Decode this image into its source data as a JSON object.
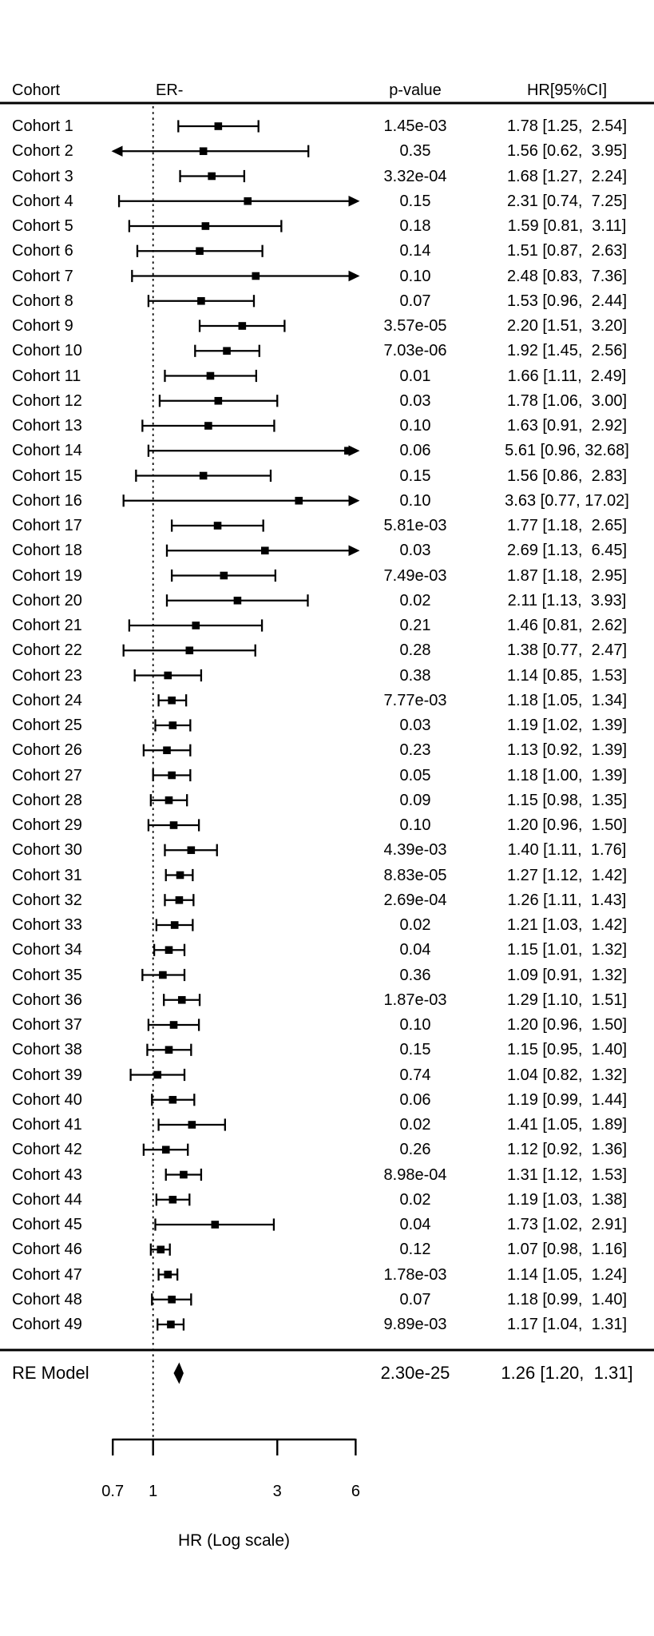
{
  "chart_data": {
    "type": "forest",
    "group_label": "ER-",
    "xlabel": "HR (Log scale)",
    "xscale": "log",
    "columns": {
      "cohort": "Cohort",
      "group": "ER-",
      "pvalue": "p-value",
      "hrci": "HR[95%CI]"
    },
    "xticks": [
      "0.7",
      "1",
      "3",
      "6"
    ],
    "xtick_values": [
      0.7,
      1,
      3,
      6
    ],
    "reference_line": 1,
    "clip_range": [
      0.7,
      6.1
    ],
    "rows": [
      {
        "label": "Cohort 1",
        "p": "1.45e-03",
        "hr": 1.78,
        "lo": 1.25,
        "hi": 2.54,
        "ci_text": "1.78 [1.25,  2.54]"
      },
      {
        "label": "Cohort 2",
        "p": "0.35",
        "hr": 1.56,
        "lo": 0.62,
        "hi": 3.95,
        "ci_text": "1.56 [0.62,  3.95]"
      },
      {
        "label": "Cohort 3",
        "p": "3.32e-04",
        "hr": 1.68,
        "lo": 1.27,
        "hi": 2.24,
        "ci_text": "1.68 [1.27,  2.24]"
      },
      {
        "label": "Cohort 4",
        "p": "0.15",
        "hr": 2.31,
        "lo": 0.74,
        "hi": 7.25,
        "ci_text": "2.31 [0.74,  7.25]"
      },
      {
        "label": "Cohort 5",
        "p": "0.18",
        "hr": 1.59,
        "lo": 0.81,
        "hi": 3.11,
        "ci_text": "1.59 [0.81,  3.11]"
      },
      {
        "label": "Cohort 6",
        "p": "0.14",
        "hr": 1.51,
        "lo": 0.87,
        "hi": 2.63,
        "ci_text": "1.51 [0.87,  2.63]"
      },
      {
        "label": "Cohort 7",
        "p": "0.10",
        "hr": 2.48,
        "lo": 0.83,
        "hi": 7.36,
        "ci_text": "2.48 [0.83,  7.36]"
      },
      {
        "label": "Cohort 8",
        "p": "0.07",
        "hr": 1.53,
        "lo": 0.96,
        "hi": 2.44,
        "ci_text": "1.53 [0.96,  2.44]"
      },
      {
        "label": "Cohort 9",
        "p": "3.57e-05",
        "hr": 2.2,
        "lo": 1.51,
        "hi": 3.2,
        "ci_text": "2.20 [1.51,  3.20]"
      },
      {
        "label": "Cohort 10",
        "p": "7.03e-06",
        "hr": 1.92,
        "lo": 1.45,
        "hi": 2.56,
        "ci_text": "1.92 [1.45,  2.56]"
      },
      {
        "label": "Cohort 11",
        "p": "0.01",
        "hr": 1.66,
        "lo": 1.11,
        "hi": 2.49,
        "ci_text": "1.66 [1.11,  2.49]"
      },
      {
        "label": "Cohort 12",
        "p": "0.03",
        "hr": 1.78,
        "lo": 1.06,
        "hi": 3.0,
        "ci_text": "1.78 [1.06,  3.00]"
      },
      {
        "label": "Cohort 13",
        "p": "0.10",
        "hr": 1.63,
        "lo": 0.91,
        "hi": 2.92,
        "ci_text": "1.63 [0.91,  2.92]"
      },
      {
        "label": "Cohort 14",
        "p": "0.06",
        "hr": 5.61,
        "lo": 0.96,
        "hi": 32.68,
        "ci_text": "5.61 [0.96, 32.68]"
      },
      {
        "label": "Cohort 15",
        "p": "0.15",
        "hr": 1.56,
        "lo": 0.86,
        "hi": 2.83,
        "ci_text": "1.56 [0.86,  2.83]"
      },
      {
        "label": "Cohort 16",
        "p": "0.10",
        "hr": 3.63,
        "lo": 0.77,
        "hi": 17.02,
        "ci_text": "3.63 [0.77, 17.02]"
      },
      {
        "label": "Cohort 17",
        "p": "5.81e-03",
        "hr": 1.77,
        "lo": 1.18,
        "hi": 2.65,
        "ci_text": "1.77 [1.18,  2.65]"
      },
      {
        "label": "Cohort 18",
        "p": "0.03",
        "hr": 2.69,
        "lo": 1.13,
        "hi": 6.45,
        "ci_text": "2.69 [1.13,  6.45]"
      },
      {
        "label": "Cohort 19",
        "p": "7.49e-03",
        "hr": 1.87,
        "lo": 1.18,
        "hi": 2.95,
        "ci_text": "1.87 [1.18,  2.95]"
      },
      {
        "label": "Cohort 20",
        "p": "0.02",
        "hr": 2.11,
        "lo": 1.13,
        "hi": 3.93,
        "ci_text": "2.11 [1.13,  3.93]"
      },
      {
        "label": "Cohort 21",
        "p": "0.21",
        "hr": 1.46,
        "lo": 0.81,
        "hi": 2.62,
        "ci_text": "1.46 [0.81,  2.62]"
      },
      {
        "label": "Cohort 22",
        "p": "0.28",
        "hr": 1.38,
        "lo": 0.77,
        "hi": 2.47,
        "ci_text": "1.38 [0.77,  2.47]"
      },
      {
        "label": "Cohort 23",
        "p": "0.38",
        "hr": 1.14,
        "lo": 0.85,
        "hi": 1.53,
        "ci_text": "1.14 [0.85,  1.53]"
      },
      {
        "label": "Cohort 24",
        "p": "7.77e-03",
        "hr": 1.18,
        "lo": 1.05,
        "hi": 1.34,
        "ci_text": "1.18 [1.05,  1.34]"
      },
      {
        "label": "Cohort 25",
        "p": "0.03",
        "hr": 1.19,
        "lo": 1.02,
        "hi": 1.39,
        "ci_text": "1.19 [1.02,  1.39]"
      },
      {
        "label": "Cohort 26",
        "p": "0.23",
        "hr": 1.13,
        "lo": 0.92,
        "hi": 1.39,
        "ci_text": "1.13 [0.92,  1.39]"
      },
      {
        "label": "Cohort 27",
        "p": "0.05",
        "hr": 1.18,
        "lo": 1.0,
        "hi": 1.39,
        "ci_text": "1.18 [1.00,  1.39]"
      },
      {
        "label": "Cohort 28",
        "p": "0.09",
        "hr": 1.15,
        "lo": 0.98,
        "hi": 1.35,
        "ci_text": "1.15 [0.98,  1.35]"
      },
      {
        "label": "Cohort 29",
        "p": "0.10",
        "hr": 1.2,
        "lo": 0.96,
        "hi": 1.5,
        "ci_text": "1.20 [0.96,  1.50]"
      },
      {
        "label": "Cohort 30",
        "p": "4.39e-03",
        "hr": 1.4,
        "lo": 1.11,
        "hi": 1.76,
        "ci_text": "1.40 [1.11,  1.76]"
      },
      {
        "label": "Cohort 31",
        "p": "8.83e-05",
        "hr": 1.27,
        "lo": 1.12,
        "hi": 1.42,
        "ci_text": "1.27 [1.12,  1.42]"
      },
      {
        "label": "Cohort 32",
        "p": "2.69e-04",
        "hr": 1.26,
        "lo": 1.11,
        "hi": 1.43,
        "ci_text": "1.26 [1.11,  1.43]"
      },
      {
        "label": "Cohort 33",
        "p": "0.02",
        "hr": 1.21,
        "lo": 1.03,
        "hi": 1.42,
        "ci_text": "1.21 [1.03,  1.42]"
      },
      {
        "label": "Cohort 34",
        "p": "0.04",
        "hr": 1.15,
        "lo": 1.01,
        "hi": 1.32,
        "ci_text": "1.15 [1.01,  1.32]"
      },
      {
        "label": "Cohort 35",
        "p": "0.36",
        "hr": 1.09,
        "lo": 0.91,
        "hi": 1.32,
        "ci_text": "1.09 [0.91,  1.32]"
      },
      {
        "label": "Cohort 36",
        "p": "1.87e-03",
        "hr": 1.29,
        "lo": 1.1,
        "hi": 1.51,
        "ci_text": "1.29 [1.10,  1.51]"
      },
      {
        "label": "Cohort 37",
        "p": "0.10",
        "hr": 1.2,
        "lo": 0.96,
        "hi": 1.5,
        "ci_text": "1.20 [0.96,  1.50]"
      },
      {
        "label": "Cohort 38",
        "p": "0.15",
        "hr": 1.15,
        "lo": 0.95,
        "hi": 1.4,
        "ci_text": "1.15 [0.95,  1.40]"
      },
      {
        "label": "Cohort 39",
        "p": "0.74",
        "hr": 1.04,
        "lo": 0.82,
        "hi": 1.32,
        "ci_text": "1.04 [0.82,  1.32]"
      },
      {
        "label": "Cohort 40",
        "p": "0.06",
        "hr": 1.19,
        "lo": 0.99,
        "hi": 1.44,
        "ci_text": "1.19 [0.99,  1.44]"
      },
      {
        "label": "Cohort 41",
        "p": "0.02",
        "hr": 1.41,
        "lo": 1.05,
        "hi": 1.89,
        "ci_text": "1.41 [1.05,  1.89]"
      },
      {
        "label": "Cohort 42",
        "p": "0.26",
        "hr": 1.12,
        "lo": 0.92,
        "hi": 1.36,
        "ci_text": "1.12 [0.92,  1.36]"
      },
      {
        "label": "Cohort 43",
        "p": "8.98e-04",
        "hr": 1.31,
        "lo": 1.12,
        "hi": 1.53,
        "ci_text": "1.31 [1.12,  1.53]"
      },
      {
        "label": "Cohort 44",
        "p": "0.02",
        "hr": 1.19,
        "lo": 1.03,
        "hi": 1.38,
        "ci_text": "1.19 [1.03,  1.38]"
      },
      {
        "label": "Cohort 45",
        "p": "0.04",
        "hr": 1.73,
        "lo": 1.02,
        "hi": 2.91,
        "ci_text": "1.73 [1.02,  2.91]"
      },
      {
        "label": "Cohort 46",
        "p": "0.12",
        "hr": 1.07,
        "lo": 0.98,
        "hi": 1.16,
        "ci_text": "1.07 [0.98,  1.16]"
      },
      {
        "label": "Cohort 47",
        "p": "1.78e-03",
        "hr": 1.14,
        "lo": 1.05,
        "hi": 1.24,
        "ci_text": "1.14 [1.05,  1.24]"
      },
      {
        "label": "Cohort 48",
        "p": "0.07",
        "hr": 1.18,
        "lo": 0.99,
        "hi": 1.4,
        "ci_text": "1.18 [0.99,  1.40]"
      },
      {
        "label": "Cohort 49",
        "p": "9.89e-03",
        "hr": 1.17,
        "lo": 1.04,
        "hi": 1.31,
        "ci_text": "1.17 [1.04,  1.31]"
      }
    ],
    "summary": {
      "label": "RE Model",
      "p": "2.30e-25",
      "hr": 1.26,
      "lo": 1.2,
      "hi": 1.31,
      "ci_text": "1.26 [1.20,  1.31]"
    }
  }
}
